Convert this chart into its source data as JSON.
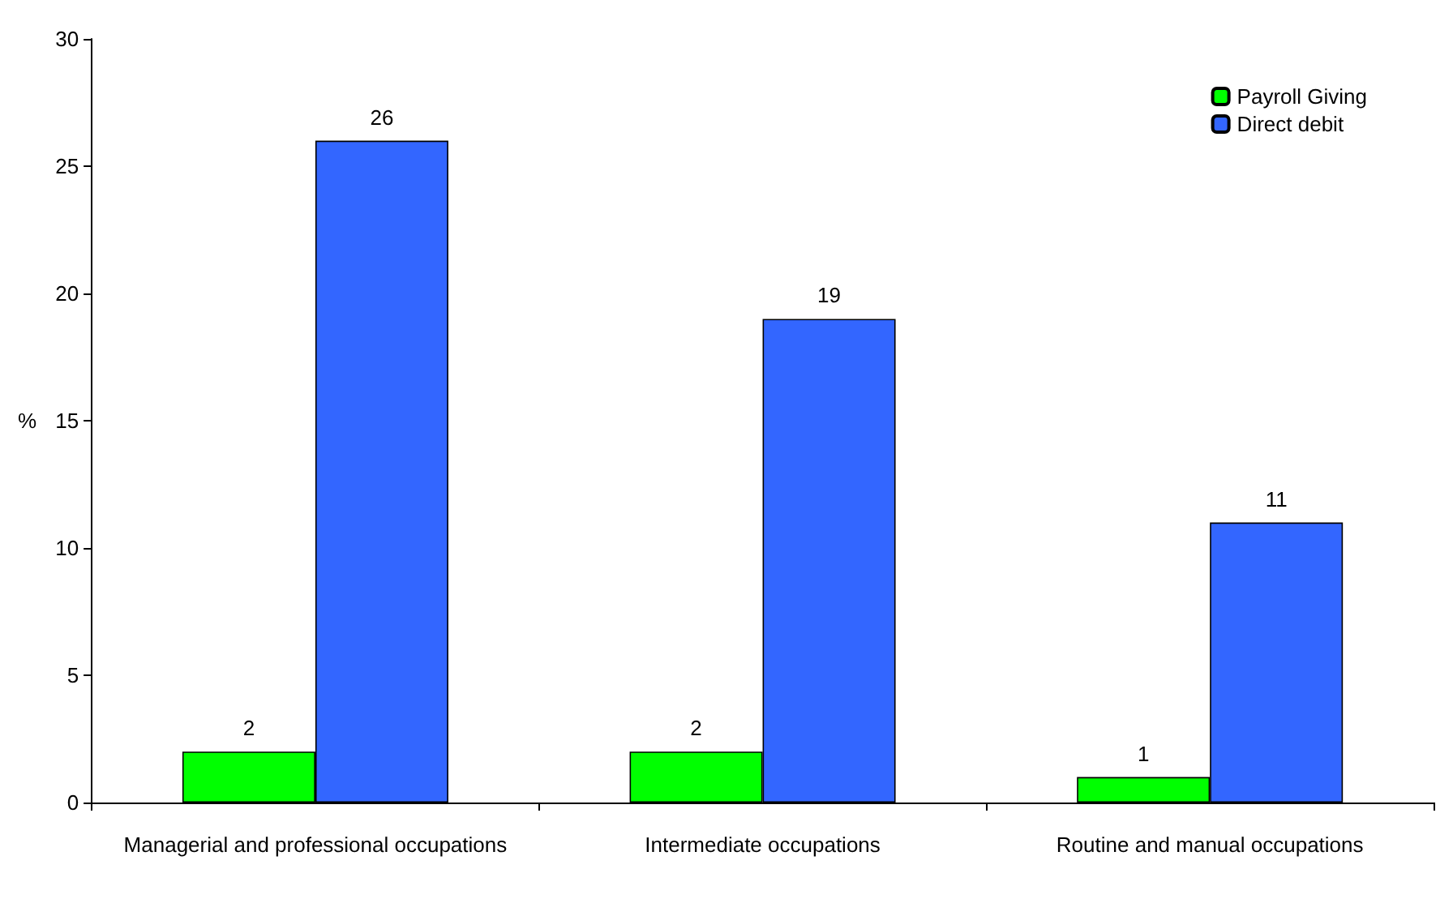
{
  "chart_data": {
    "type": "bar",
    "ylabel": "%",
    "categories": [
      "Managerial and professional occupations",
      "Intermediate occupations",
      "Routine and manual occupations"
    ],
    "series": [
      {
        "name": "Payroll Giving",
        "color": "#00ff00",
        "values": [
          2,
          2,
          1
        ]
      },
      {
        "name": "Direct debit",
        "color": "#3366ff",
        "values": [
          26,
          19,
          11
        ]
      }
    ],
    "ylim": [
      0,
      30
    ],
    "yticks": [
      0,
      5,
      10,
      15,
      20,
      25,
      30
    ],
    "grid": false,
    "legend": "top right",
    "data_labels": true
  }
}
